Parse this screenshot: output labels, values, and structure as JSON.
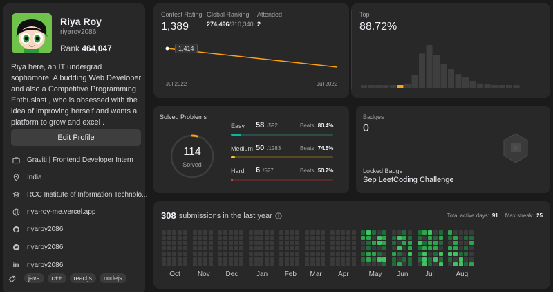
{
  "profile": {
    "name": "Riya Roy",
    "username": "riyaroy2086",
    "rank_label": "Rank",
    "rank_value": "464,047",
    "bio": "Riya here, an IT undergrad sophomore. A budding Web Developer and also a Competitive Programming Enthusiast , who is obsessed with the idea of improving herself and wants a platform to grow and excel .",
    "edit_button": "Edit Profile",
    "info": [
      {
        "icon": "briefcase-icon",
        "text": "Graviti | Frontend Developer Intern"
      },
      {
        "icon": "location-icon",
        "text": "India"
      },
      {
        "icon": "graduation-cap-icon",
        "text": "RCC Institute of Information Technolo..."
      },
      {
        "icon": "globe-icon",
        "text": "riya-roy-me.vercel.app"
      },
      {
        "icon": "github-icon",
        "text": "riyaroy2086"
      },
      {
        "icon": "twitter-icon",
        "text": "riyaroy2086"
      },
      {
        "icon": "linkedin-icon",
        "text": "riyaroy2086"
      }
    ],
    "tag_icon": "tag-icon",
    "tags": [
      "java",
      "c++",
      "reactjs",
      "nodejs"
    ]
  },
  "contest": {
    "rating_label": "Contest Rating",
    "rating_value": "1,389",
    "ranking_label": "Global Ranking",
    "ranking_value": "274,496",
    "ranking_total": "/310,340",
    "attended_label": "Attended",
    "attended_value": "2",
    "tooltip": "1,414",
    "x_start": "Jul 2022",
    "x_end": "Jul 2022"
  },
  "top": {
    "label": "Top",
    "value": "88.72%",
    "histogram": [
      1,
      1,
      1,
      1,
      1,
      1,
      5,
      15,
      40,
      50,
      38,
      28,
      22,
      16,
      12,
      8,
      5,
      4,
      3,
      2,
      2,
      2
    ],
    "highlight_index": 5
  },
  "solved": {
    "title": "Solved Problems",
    "total": "114",
    "total_label": "Solved",
    "fraction_ring": 0.04,
    "rows": [
      {
        "label": "Easy",
        "count": "58",
        "total": "/592",
        "beats_label": "Beats",
        "beats": "80.4%",
        "fraction": 0.098,
        "color": "#00b8a3",
        "track": "#2d4e48"
      },
      {
        "label": "Medium",
        "count": "50",
        "total": "/1283",
        "beats_label": "Beats",
        "beats": "74.5%",
        "fraction": 0.039,
        "color": "#ffc01e",
        "track": "#5a4a22"
      },
      {
        "label": "Hard",
        "count": "6",
        "total": "/527",
        "beats_label": "Beats",
        "beats": "50.7%",
        "fraction": 0.011,
        "color": "#ef4743",
        "track": "#5a2a2a"
      }
    ]
  },
  "badges": {
    "label": "Badges",
    "count": "0",
    "locked_label": "Locked Badge",
    "locked_name": "Sep LeetCoding Challenge",
    "badge_icon": "locked-badge-icon"
  },
  "submissions": {
    "count": "308",
    "text": "submissions in the last year",
    "info_icon": "info-icon",
    "active_label": "Total active days:",
    "active_value": "91",
    "streak_label": "Max streak:",
    "streak_value": "25",
    "months": [
      "Oct",
      "Nov",
      "Dec",
      "Jan",
      "Feb",
      "Mar",
      "Apr",
      "May",
      "Jun",
      "Jul",
      "Aug"
    ]
  },
  "colors": {
    "accent_orange": "#ffa116",
    "green_dark": "#1f6b3a",
    "green_mid": "#2ea44f",
    "green_light": "#40c463",
    "empty_cell": "#3a3a3a"
  }
}
